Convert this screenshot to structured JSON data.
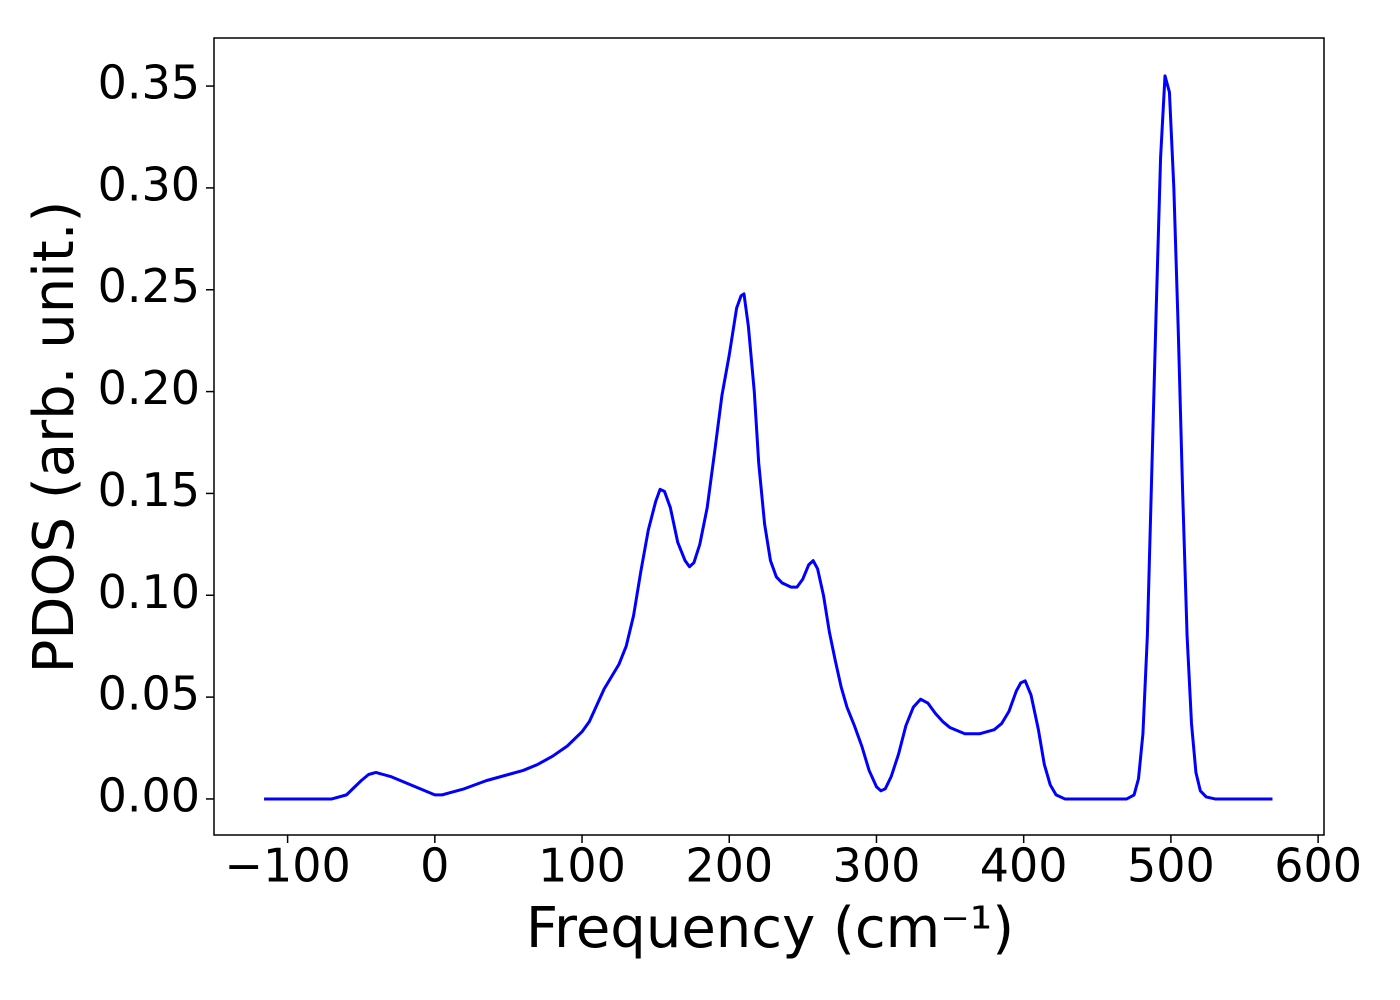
{
  "chart_data": {
    "type": "line",
    "xlabel": "Frequency (cm⁻¹)",
    "ylabel": "PDOS (arb. unit.)",
    "x": [
      -116,
      -70,
      -60,
      -50,
      -45,
      -40,
      -30,
      -20,
      -10,
      0,
      5,
      10,
      20,
      35,
      50,
      60,
      70,
      80,
      90,
      100,
      105,
      110,
      115,
      120,
      125,
      130,
      135,
      140,
      145,
      150,
      153,
      156,
      160,
      165,
      170,
      173,
      176,
      180,
      185,
      190,
      195,
      200,
      205,
      208,
      210,
      213,
      217,
      220,
      224,
      228,
      232,
      236,
      242,
      246,
      250,
      254,
      257,
      260,
      264,
      268,
      272,
      276,
      280,
      285,
      290,
      295,
      300,
      303,
      306,
      310,
      315,
      320,
      325,
      330,
      335,
      340,
      345,
      350,
      360,
      370,
      380,
      385,
      390,
      395,
      398,
      401,
      405,
      410,
      414,
      418,
      422,
      428,
      470,
      475,
      478,
      481,
      484,
      487,
      490,
      493,
      496,
      499,
      502,
      505,
      508,
      511,
      514,
      517,
      520,
      524,
      530,
      569
    ],
    "series": [
      {
        "color": "#0000ff",
        "values": [
          0,
          0,
          0.002,
          0.009,
          0.012,
          0.013,
          0.011,
          0.008,
          0.005,
          0.002,
          0.002,
          0.003,
          0.005,
          0.009,
          0.012,
          0.014,
          0.017,
          0.021,
          0.026,
          0.033,
          0.038,
          0.046,
          0.054,
          0.06,
          0.066,
          0.075,
          0.09,
          0.112,
          0.132,
          0.146,
          0.152,
          0.151,
          0.143,
          0.126,
          0.117,
          0.114,
          0.116,
          0.125,
          0.143,
          0.17,
          0.198,
          0.218,
          0.241,
          0.247,
          0.248,
          0.232,
          0.2,
          0.165,
          0.135,
          0.117,
          0.109,
          0.106,
          0.104,
          0.104,
          0.108,
          0.115,
          0.117,
          0.113,
          0.1,
          0.082,
          0.068,
          0.055,
          0.045,
          0.036,
          0.026,
          0.014,
          0.006,
          0.004,
          0.005,
          0.011,
          0.022,
          0.036,
          0.045,
          0.049,
          0.047,
          0.042,
          0.038,
          0.035,
          0.032,
          0.032,
          0.034,
          0.037,
          0.043,
          0.053,
          0.057,
          0.058,
          0.051,
          0.034,
          0.017,
          0.007,
          0.002,
          0,
          0,
          0.002,
          0.01,
          0.032,
          0.08,
          0.16,
          0.24,
          0.315,
          0.355,
          0.347,
          0.3,
          0.23,
          0.15,
          0.08,
          0.037,
          0.013,
          0.004,
          0.001,
          0,
          0
        ]
      }
    ],
    "xlim": [
      -150,
      604
    ],
    "xticks": [
      {
        "value": -100,
        "label": "−100"
      },
      0,
      100,
      200,
      300,
      400,
      500,
      600
    ],
    "ylim": [
      -0.0177,
      0.3736
    ],
    "yticks": [
      {
        "value": 0,
        "label": "0.00"
      },
      {
        "value": 0.05,
        "label": "0.05"
      },
      {
        "value": 0.1,
        "label": "0.10"
      },
      {
        "value": 0.15,
        "label": "0.15"
      },
      {
        "value": 0.2,
        "label": "0.20"
      },
      {
        "value": 0.25,
        "label": "0.25"
      },
      {
        "value": 0.3,
        "label": "0.30"
      },
      {
        "value": 0.35,
        "label": "0.35"
      }
    ],
    "grid": false
  }
}
